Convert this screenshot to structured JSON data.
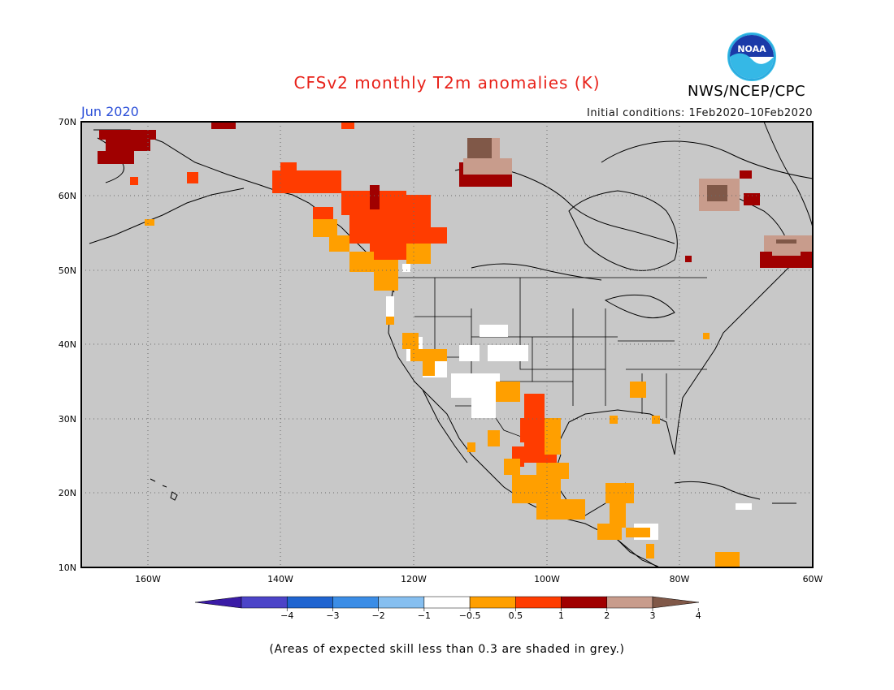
{
  "header": {
    "title": "CFSv2 monthly T2m anomalies (K)",
    "agency": "NWS/NCEP/CPC",
    "month": "Jun 2020",
    "initial_conditions": "Initial conditions: 1Feb2020–10Feb2020",
    "logo_text": "NOAA"
  },
  "map": {
    "lat_labels": [
      "70N",
      "60N",
      "50N",
      "40N",
      "30N",
      "20N",
      "10N"
    ],
    "lon_labels": [
      "160W",
      "140W",
      "120W",
      "100W",
      "80W",
      "60W"
    ],
    "ocean_color": "#c8c8c8"
  },
  "colorbar": {
    "tick_labels": [
      "−4",
      "−3",
      "−2",
      "−1",
      "−0.5",
      "0.5",
      "1",
      "2",
      "3",
      "4"
    ],
    "colors": [
      "#3a1ba6",
      "#4c44c8",
      "#1f64d0",
      "#3b8de6",
      "#86bff0",
      "#ffffff",
      "#ff9f00",
      "#ff3c00",
      "#a00000",
      "#c89c8c",
      "#805848"
    ]
  },
  "footnote": "(Areas of expected skill less than 0.3 are shaded in grey.)"
}
